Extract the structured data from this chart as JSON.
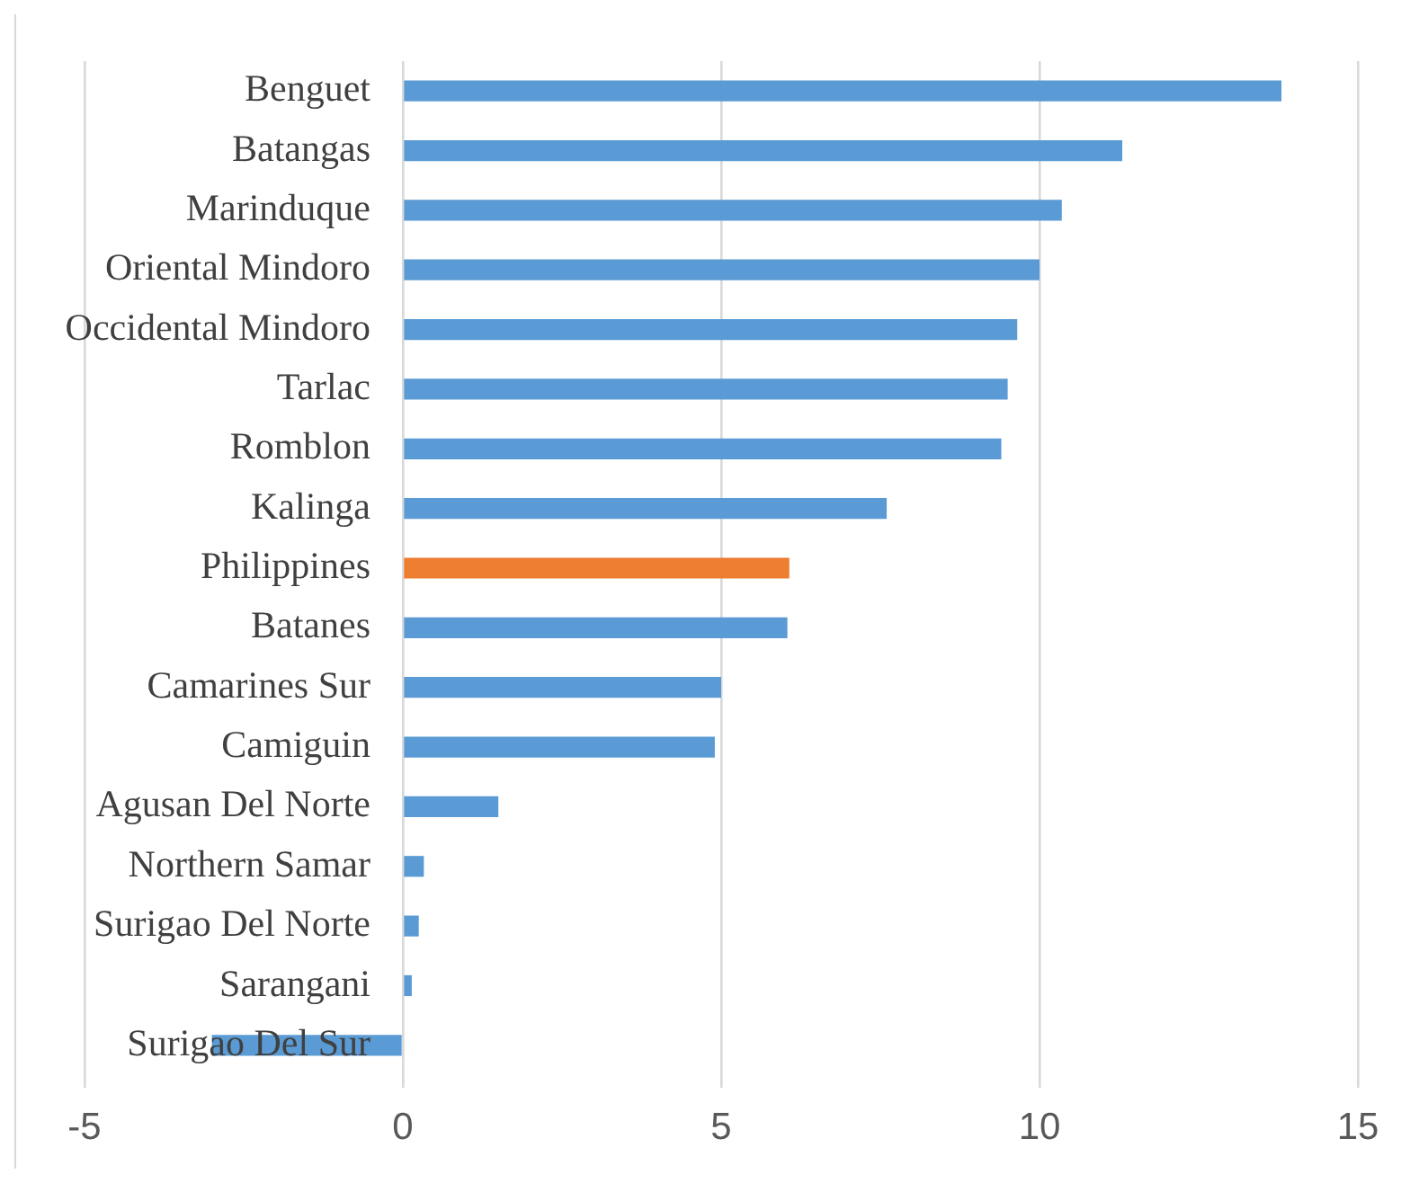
{
  "chart_data": {
    "type": "bar",
    "orientation": "horizontal",
    "categories": [
      "Benguet",
      "Batangas",
      "Marinduque",
      "Oriental Mindoro",
      "Occidental Mindoro",
      "Tarlac",
      "Romblon",
      "Kalinga",
      "Philippines",
      "Batanes",
      "Camarines Sur",
      "Camiguin",
      "Agusan Del Norte",
      "Northern Samar",
      "Surigao Del Norte",
      "Sarangani",
      "Surigao Del Sur"
    ],
    "values": [
      13.8,
      11.3,
      10.35,
      10.0,
      9.65,
      9.5,
      9.4,
      7.6,
      6.07,
      6.04,
      5.0,
      4.9,
      1.5,
      0.33,
      0.25,
      0.14,
      -3.0
    ],
    "colors": [
      "#5b9bd5",
      "#5b9bd5",
      "#5b9bd5",
      "#5b9bd5",
      "#5b9bd5",
      "#5b9bd5",
      "#5b9bd5",
      "#5b9bd5",
      "#ed7d31",
      "#5b9bd5",
      "#5b9bd5",
      "#5b9bd5",
      "#5b9bd5",
      "#5b9bd5",
      "#5b9bd5",
      "#5b9bd5",
      "#5b9bd5"
    ],
    "xlim": [
      -5,
      15
    ],
    "xticks": [
      -5,
      0,
      5,
      10,
      15
    ],
    "grid": "x"
  }
}
